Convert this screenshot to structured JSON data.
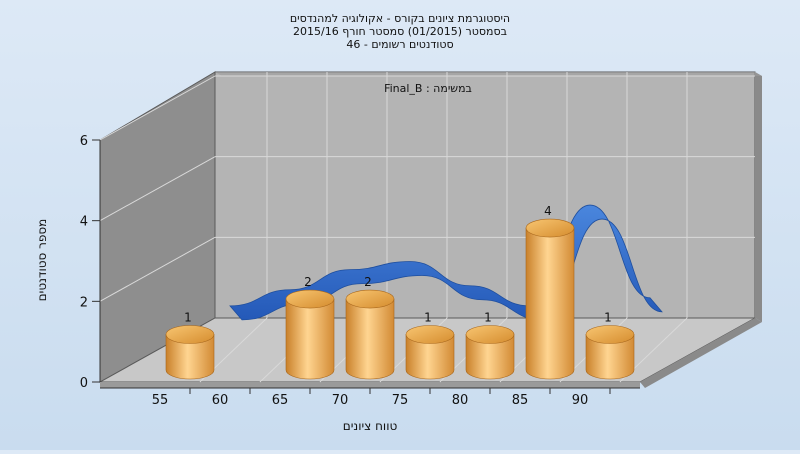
{
  "chart_data": {
    "type": "bar",
    "title_lines": [
      "היסטוגרמת ציונים בקורס - אקולוגיה למהנדסים",
      "בסמסטר  (01/2015)  סמסטר חורף 2015/16",
      "סטודנטים רשומים - 46"
    ],
    "annotation": "במשימה : Final_B",
    "xlabel": "טווח ציונים",
    "ylabel": "מספר סטודנטים",
    "x_ticks": [
      "55",
      "60",
      "65",
      "70",
      "75",
      "80",
      "85",
      "90"
    ],
    "y_ticks": [
      "0",
      "2",
      "4",
      "6"
    ],
    "ylim": [
      0,
      6
    ],
    "grid": true,
    "series": [
      {
        "type": "bar",
        "x": [
          55,
          65,
          70,
          75,
          80,
          85,
          90
        ],
        "values": [
          1,
          2,
          2,
          1,
          1,
          4,
          1
        ],
        "labels": [
          "1",
          "2",
          "2",
          "1",
          "1",
          "4",
          "1"
        ]
      },
      {
        "type": "line",
        "x": [
          55,
          60,
          65,
          70,
          75,
          80,
          85,
          90
        ],
        "values": [
          0.3,
          0.7,
          1.2,
          1.4,
          0.8,
          0.3,
          2.8,
          0.5
        ]
      }
    ],
    "colors": {
      "bar": "#f0b45a",
      "line": "#2f6fd0",
      "wall": "#8c8c8c",
      "floor": "#bfbfbf"
    }
  }
}
